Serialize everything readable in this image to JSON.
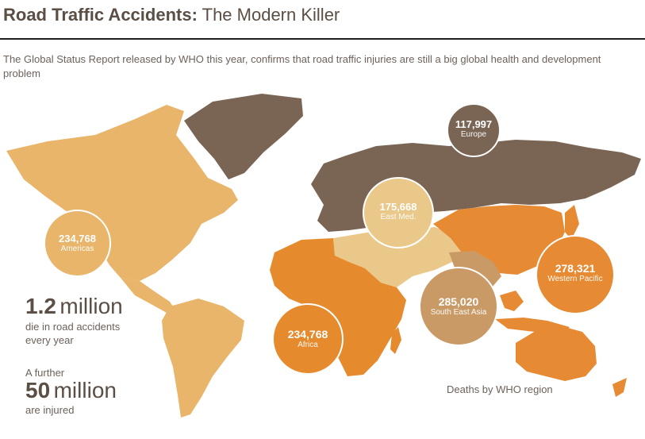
{
  "header": {
    "title_bold": "Road Traffic Accidents:",
    "title_light": "The Modern Killer",
    "subtitle": "The Global Status Report released by WHO this year, confirms that road traffic injuries are still a big global health and development problem"
  },
  "colors": {
    "americas": "#e8b56a",
    "europe": "#7a6555",
    "east_med": "#eac889",
    "africa": "#e58a2d",
    "south_east_asia": "#c99a66",
    "western_pacific": "#e68a33",
    "text": "#5b4e44"
  },
  "regions": [
    {
      "id": "europe",
      "value": "117,997",
      "label": "Europe"
    },
    {
      "id": "east_med",
      "value": "175,668",
      "label": "East Med."
    },
    {
      "id": "americas",
      "value": "234,768",
      "label": "Americas"
    },
    {
      "id": "western_pacific",
      "value": "278,321",
      "label": "Western Pacific"
    },
    {
      "id": "south_east_asia",
      "value": "285,020",
      "label": "South East Asia"
    },
    {
      "id": "africa",
      "value": "234,768",
      "label": "Africa"
    }
  ],
  "stats": {
    "deaths_value": "1.2",
    "deaths_unit": "million",
    "deaths_line1": "die in road accidents",
    "deaths_line2": "every year",
    "further": "A further",
    "injured_value": "50",
    "injured_unit": "million",
    "injured_label": "are injured"
  },
  "legend": "Deaths by WHO region"
}
